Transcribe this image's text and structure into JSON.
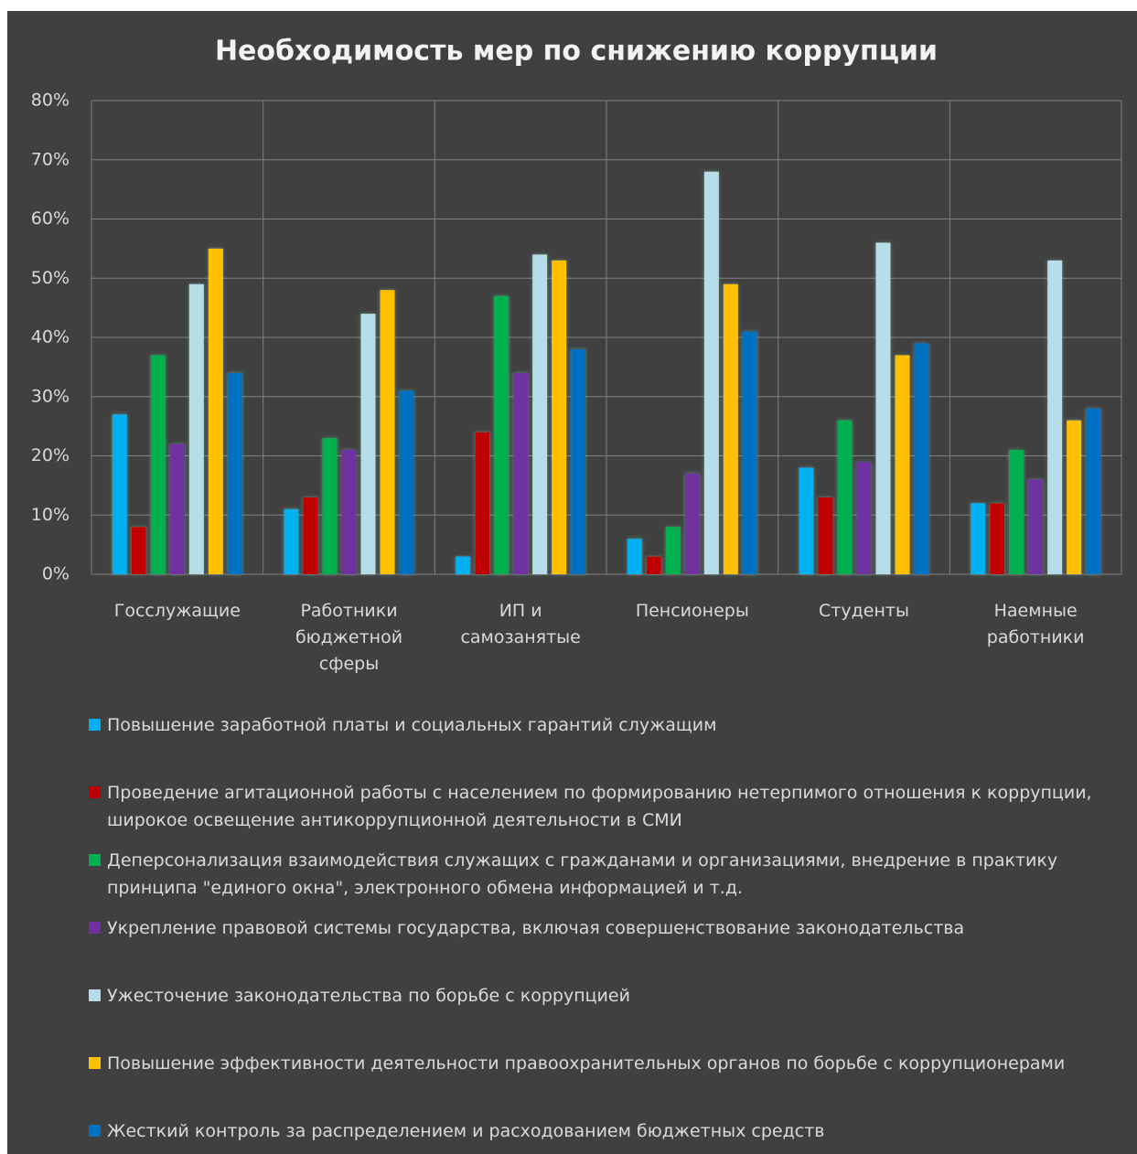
{
  "chart_data": {
    "type": "bar",
    "title": "Необходимость мер по снижению коррупции",
    "categories": [
      "Госслужащие",
      "Работники бюджетной сферы",
      "ИП и самозанятые",
      "Пенсионеры",
      "Студенты",
      "Наемные работники"
    ],
    "series": [
      {
        "name": "Повышение заработной платы и социальных гарантий служащим",
        "color": "#00b0f0",
        "values": [
          27,
          11,
          3,
          6,
          18,
          12
        ]
      },
      {
        "name": "Проведение агитационной работы с населением по формированию нетерпимого отношения к коррупции, широкое освещение антикоррупционной деятельности в СМИ",
        "color": "#c00000",
        "values": [
          8,
          13,
          24,
          3,
          13,
          12
        ]
      },
      {
        "name": "Деперсонализация взаимодействия служащих с гражданами и организациями, внедрение в практику принципа \"единого окна\", электронного обмена информацией и т.д.",
        "color": "#00b050",
        "values": [
          37,
          23,
          47,
          8,
          26,
          21
        ]
      },
      {
        "name": "Укрепление правовой системы государства, включая совершенствование законодательства",
        "color": "#7030a0",
        "values": [
          22,
          21,
          34,
          17,
          19,
          16
        ]
      },
      {
        "name": "Ужесточение законодательства по борьбе с коррупцией",
        "color": "#b7dee8",
        "values": [
          49,
          44,
          54,
          68,
          56,
          53
        ]
      },
      {
        "name": "Повышение эффективности деятельности правоохранительных органов по борьбе с коррупционерами",
        "color": "#ffc000",
        "values": [
          55,
          48,
          53,
          49,
          37,
          26
        ]
      },
      {
        "name": "Жесткий контроль за распределением и расходованием бюджетных средств",
        "color": "#0070c0",
        "values": [
          34,
          31,
          38,
          41,
          39,
          28
        ]
      }
    ],
    "ylim": [
      0,
      80
    ],
    "yticks": [
      {
        "value": 0,
        "label": "0%"
      },
      {
        "value": 10,
        "label": "10%"
      },
      {
        "value": 20,
        "label": "20%"
      },
      {
        "value": 30,
        "label": "30%"
      },
      {
        "value": 40,
        "label": "40%"
      },
      {
        "value": 50,
        "label": "50%"
      },
      {
        "value": 60,
        "label": "60%"
      },
      {
        "value": 70,
        "label": "70%"
      },
      {
        "value": 80,
        "label": "80%"
      }
    ],
    "grid": true,
    "legend": "bottom"
  }
}
